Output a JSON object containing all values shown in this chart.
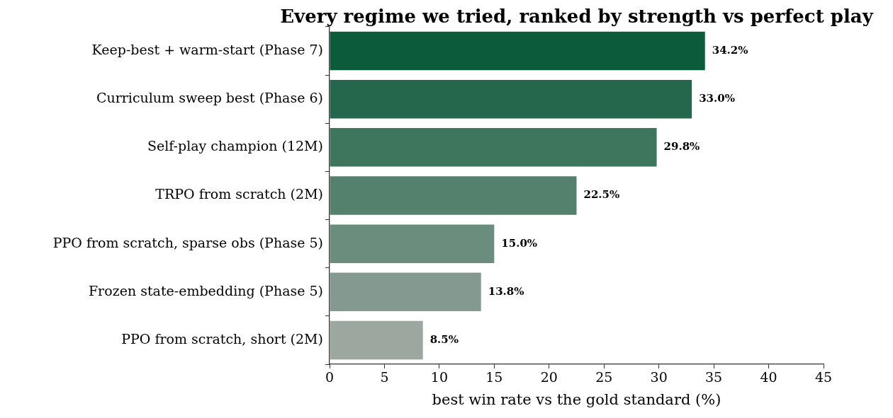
{
  "chart_data": {
    "type": "bar",
    "orientation": "horizontal",
    "title": "Every regime we tried, ranked by strength vs perfect play",
    "xlabel": "best win rate vs the gold standard (%)",
    "categories": [
      "Keep-best + warm-start (Phase 7)",
      "Curriculum sweep best (Phase 6)",
      "Self-play champion (12M)",
      "TRPO from scratch (2M)",
      "PPO from scratch, sparse obs (Phase 5)",
      "Frozen state-embedding (Phase 5)",
      "PPO from scratch, short (2M)"
    ],
    "values": [
      34.2,
      33.0,
      29.8,
      22.5,
      15.0,
      13.8,
      8.5
    ],
    "colors": [
      "#0c5c3b",
      "#25674c",
      "#3d755d",
      "#53816d",
      "#6b8d7e",
      "#84998f",
      "#9ca7a0"
    ],
    "value_labels": [
      "34.2%",
      "33.0%",
      "29.8%",
      "22.5%",
      "15.0%",
      "13.8%",
      "8.5%"
    ],
    "xlim": [
      0,
      45
    ],
    "xticks": [
      0,
      5,
      10,
      15,
      20,
      25,
      30,
      35,
      40,
      45
    ],
    "grid": false,
    "legend": false
  }
}
